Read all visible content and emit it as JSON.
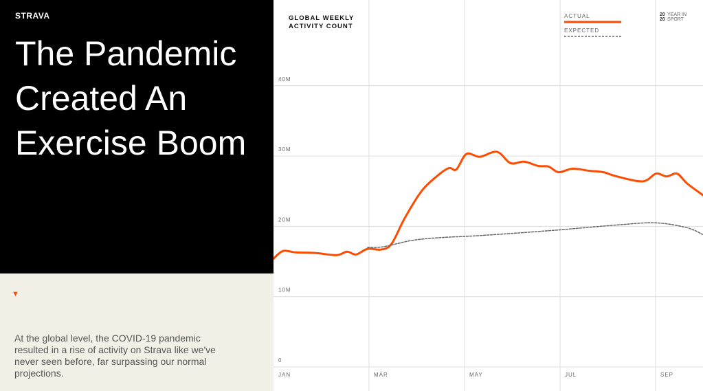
{
  "brand": "STRAVA",
  "headline": "The Pandemic Created An Exercise Boom",
  "description": "At the global level, the COVID-19 pandemic resulted in a rise of activity on Strava like we've never seen before, far surpassing our normal projections.",
  "scroll_icon": "triangle-down-icon",
  "badge": {
    "line1_num": "20",
    "line1_text": "YEAR IN",
    "line2_num": "20",
    "line2_text": "SPORT"
  },
  "colors": {
    "actual": "#fc4c02",
    "expected": "#666666"
  },
  "chart_data": {
    "type": "line",
    "title_lines": [
      "GLOBAL WEEKLY",
      "ACTIVITY COUNT"
    ],
    "xlabel": "",
    "ylabel": "",
    "x_unit": "months since Jan 1",
    "xlim": [
      0,
      9
    ],
    "ylim": [
      0,
      40
    ],
    "x_ticks": [
      {
        "x": 0,
        "label": "JAN"
      },
      {
        "x": 2,
        "label": "MAR"
      },
      {
        "x": 4,
        "label": "MAY"
      },
      {
        "x": 6,
        "label": "JUL"
      },
      {
        "x": 8,
        "label": "SEP"
      }
    ],
    "y_ticks": [
      {
        "y": 0,
        "label": "0"
      },
      {
        "y": 10,
        "label": "10M"
      },
      {
        "y": 20,
        "label": "20M"
      },
      {
        "y": 30,
        "label": "30M"
      },
      {
        "y": 40,
        "label": "40M"
      }
    ],
    "grid": true,
    "legend": "top-right",
    "series": [
      {
        "name": "ACTUAL",
        "style": "solid",
        "points": [
          [
            0,
            15.4
          ],
          [
            0.2,
            16.5
          ],
          [
            0.46,
            16.3
          ],
          [
            0.89,
            16.2
          ],
          [
            1.32,
            15.9
          ],
          [
            1.54,
            16.4
          ],
          [
            1.73,
            16.0
          ],
          [
            1.97,
            16.8
          ],
          [
            2.25,
            16.7
          ],
          [
            2.47,
            17.5
          ],
          [
            2.75,
            21.2
          ],
          [
            3.11,
            25.1
          ],
          [
            3.47,
            27.4
          ],
          [
            3.68,
            28.3
          ],
          [
            3.83,
            28.1
          ],
          [
            4.04,
            30.3
          ],
          [
            4.32,
            29.9
          ],
          [
            4.68,
            30.6
          ],
          [
            4.96,
            29.0
          ],
          [
            5.25,
            29.2
          ],
          [
            5.54,
            28.6
          ],
          [
            5.76,
            28.5
          ],
          [
            5.97,
            27.7
          ],
          [
            6.26,
            28.2
          ],
          [
            6.62,
            27.9
          ],
          [
            6.91,
            27.7
          ],
          [
            7.19,
            27.1
          ],
          [
            7.73,
            26.4
          ],
          [
            8.01,
            27.5
          ],
          [
            8.23,
            27.1
          ],
          [
            8.45,
            27.5
          ],
          [
            8.66,
            26.1
          ],
          [
            9.0,
            24.4
          ]
        ]
      },
      {
        "name": "EXPECTED",
        "style": "dashed",
        "points": [
          [
            1.97,
            17.0
          ],
          [
            2.3,
            17.1
          ],
          [
            2.9,
            18.0
          ],
          [
            3.5,
            18.4
          ],
          [
            4.35,
            18.7
          ],
          [
            5.8,
            19.4
          ],
          [
            7.2,
            20.2
          ],
          [
            8.0,
            20.5
          ],
          [
            8.66,
            19.8
          ],
          [
            9.0,
            18.8
          ]
        ]
      }
    ]
  }
}
